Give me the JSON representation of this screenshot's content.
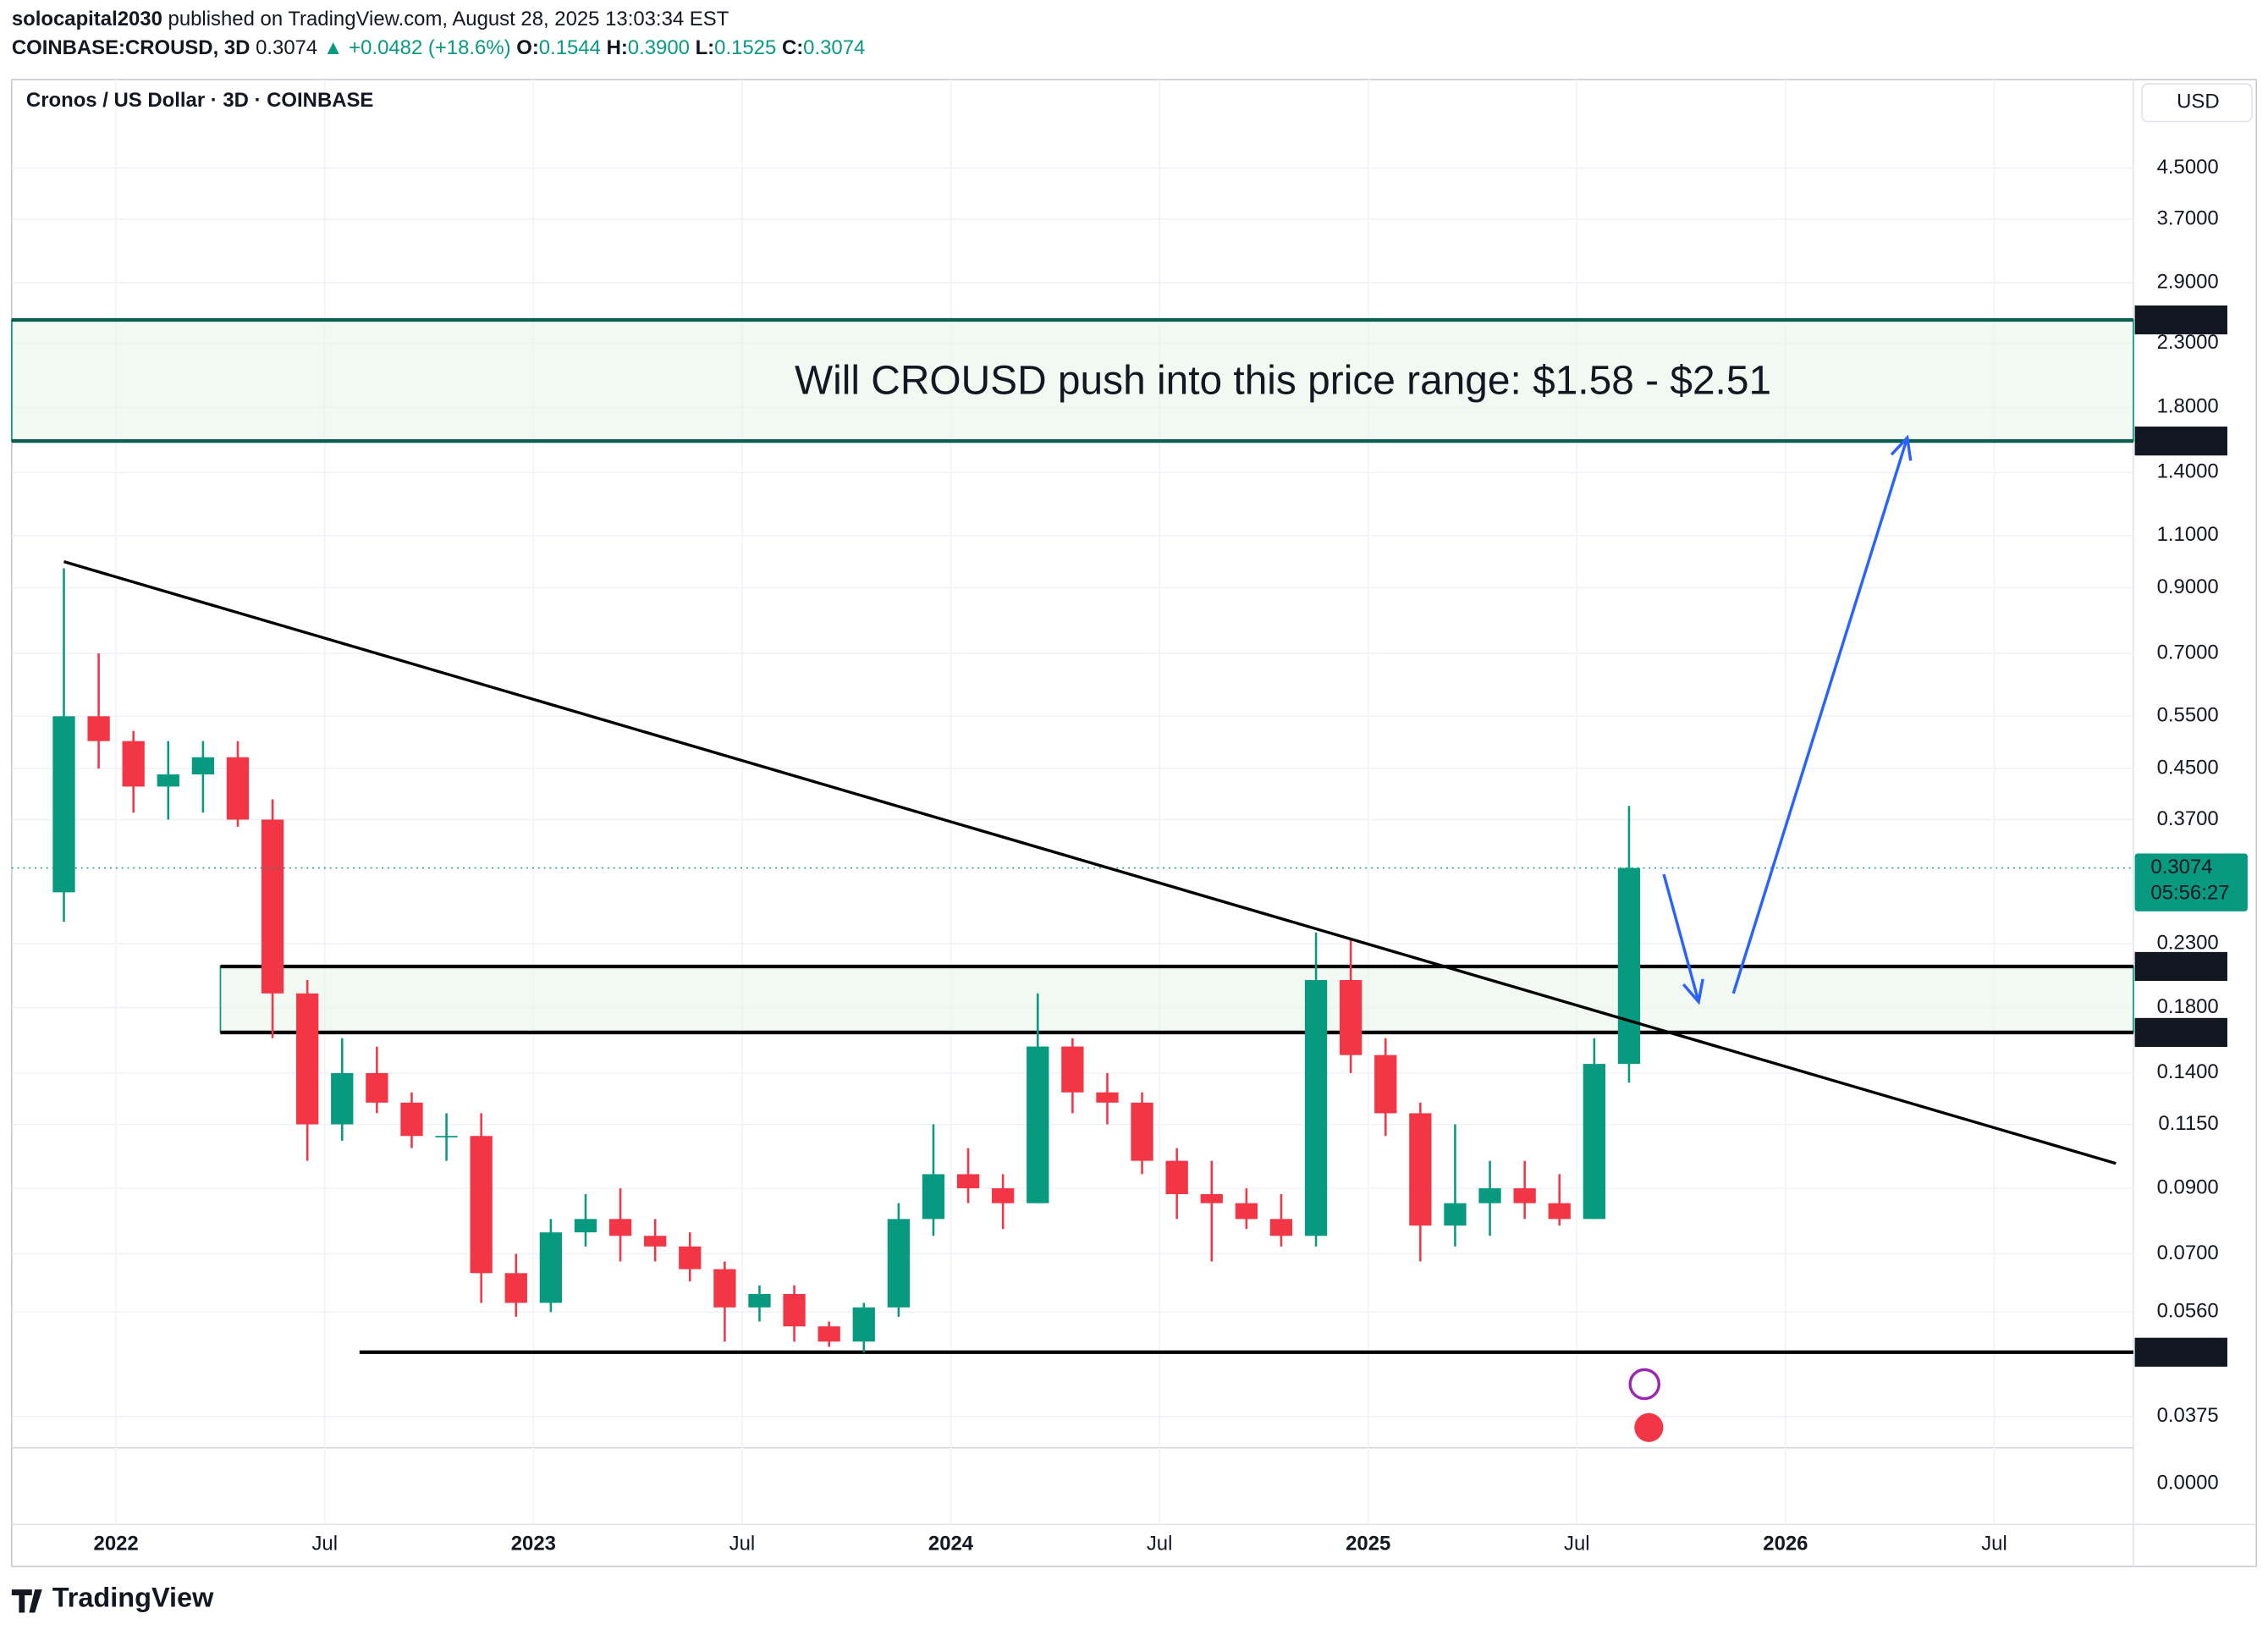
{
  "header": {
    "author": "solocapital2030",
    "published": "published on TradingView.com, August 28, 2025 13:03:34 EST",
    "symbol": "COINBASE:CROUSD, 3D",
    "last": "0.3074",
    "change": "▲ +0.0482 (+18.6%)",
    "ohlc": [
      {
        "label": "O:",
        "value": "0.1544"
      },
      {
        "label": "H:",
        "value": "0.3900"
      },
      {
        "label": "L:",
        "value": "0.1525"
      },
      {
        "label": "C:",
        "value": "0.3074"
      }
    ]
  },
  "footer": {
    "brand": "TradingView"
  },
  "chart_data": {
    "type": "candlestick",
    "title": "Cronos / US Dollar · 3D · COINBASE",
    "currency": "USD",
    "up_color": "#089981",
    "down_color": "#f23645",
    "log_scale": true,
    "grid": true,
    "x": [
      "2021-11",
      "2021-12",
      "2022-01",
      "2022-02",
      "2022-03",
      "2022-04",
      "2022-05",
      "2022-06",
      "2022-07",
      "2022-08",
      "2022-09",
      "2022-10",
      "2022-11",
      "2022-12",
      "2023-01",
      "2023-02",
      "2023-03",
      "2023-04",
      "2023-05",
      "2023-06",
      "2023-07",
      "2023-08",
      "2023-09",
      "2023-10",
      "2023-11",
      "2023-12",
      "2024-01",
      "2024-02",
      "2024-03",
      "2024-04",
      "2024-05",
      "2024-06",
      "2024-07",
      "2024-08",
      "2024-09",
      "2024-10",
      "2024-11",
      "2024-12",
      "2025-01",
      "2025-02",
      "2025-03",
      "2025-04",
      "2025-05",
      "2025-06",
      "2025-07",
      "2025-08"
    ],
    "open": [
      0.28,
      0.55,
      0.5,
      0.42,
      0.44,
      0.47,
      0.37,
      0.19,
      0.115,
      0.14,
      0.125,
      0.11,
      0.11,
      0.065,
      0.058,
      0.076,
      0.08,
      0.075,
      0.072,
      0.066,
      0.057,
      0.06,
      0.053,
      0.05,
      0.057,
      0.08,
      0.095,
      0.09,
      0.085,
      0.155,
      0.13,
      0.125,
      0.1,
      0.088,
      0.085,
      0.08,
      0.075,
      0.2,
      0.15,
      0.12,
      0.078,
      0.085,
      0.09,
      0.085,
      0.08,
      0.145
    ],
    "high": [
      0.97,
      0.7,
      0.52,
      0.5,
      0.5,
      0.5,
      0.4,
      0.2,
      0.16,
      0.155,
      0.13,
      0.12,
      0.12,
      0.07,
      0.08,
      0.088,
      0.09,
      0.08,
      0.076,
      0.068,
      0.062,
      0.062,
      0.054,
      0.058,
      0.085,
      0.115,
      0.105,
      0.095,
      0.19,
      0.16,
      0.14,
      0.13,
      0.105,
      0.1,
      0.09,
      0.088,
      0.24,
      0.235,
      0.16,
      0.125,
      0.115,
      0.1,
      0.1,
      0.095,
      0.16,
      0.39
    ],
    "low": [
      0.25,
      0.45,
      0.38,
      0.37,
      0.38,
      0.36,
      0.16,
      0.1,
      0.108,
      0.12,
      0.105,
      0.1,
      0.058,
      0.055,
      0.056,
      0.072,
      0.068,
      0.068,
      0.063,
      0.05,
      0.054,
      0.05,
      0.049,
      0.048,
      0.055,
      0.075,
      0.085,
      0.077,
      0.085,
      0.12,
      0.115,
      0.095,
      0.08,
      0.068,
      0.077,
      0.072,
      0.072,
      0.14,
      0.11,
      0.068,
      0.072,
      0.075,
      0.08,
      0.078,
      0.08,
      0.135
    ],
    "close": [
      0.55,
      0.5,
      0.42,
      0.44,
      0.47,
      0.37,
      0.19,
      0.115,
      0.14,
      0.125,
      0.11,
      0.11,
      0.065,
      0.058,
      0.076,
      0.08,
      0.075,
      0.072,
      0.066,
      0.057,
      0.06,
      0.053,
      0.05,
      0.057,
      0.08,
      0.095,
      0.09,
      0.085,
      0.155,
      0.13,
      0.125,
      0.1,
      0.088,
      0.085,
      0.08,
      0.075,
      0.2,
      0.15,
      0.12,
      0.078,
      0.085,
      0.09,
      0.085,
      0.08,
      0.145,
      0.3074
    ],
    "xlim": [
      "2021-10",
      "2026-11"
    ],
    "xticks": [
      {
        "value": "2022-01",
        "label": "2022"
      },
      {
        "value": "2022-07",
        "label": "Jul"
      },
      {
        "value": "2023-01",
        "label": "2023"
      },
      {
        "value": "2023-07",
        "label": "Jul"
      },
      {
        "value": "2024-01",
        "label": "2024"
      },
      {
        "value": "2024-07",
        "label": "Jul"
      },
      {
        "value": "2025-01",
        "label": "2025"
      },
      {
        "value": "2025-07",
        "label": "Jul"
      },
      {
        "value": "2026-01",
        "label": "2026"
      },
      {
        "value": "2026-07",
        "label": "Jul"
      }
    ],
    "ylim": [
      0.0248,
      6.32
    ],
    "yticks": [
      {
        "value": 4.5,
        "label": "4.5000"
      },
      {
        "value": 3.7,
        "label": "3.7000"
      },
      {
        "value": 2.9,
        "label": "2.9000"
      },
      {
        "value": 2.3,
        "label": "2.3000"
      },
      {
        "value": 1.8,
        "label": "1.8000"
      },
      {
        "value": 1.4,
        "label": "1.4000"
      },
      {
        "value": 1.1,
        "label": "1.1000"
      },
      {
        "value": 0.9,
        "label": "0.9000"
      },
      {
        "value": 0.7,
        "label": "0.7000"
      },
      {
        "value": 0.55,
        "label": "0.5500"
      },
      {
        "value": 0.45,
        "label": "0.4500"
      },
      {
        "value": 0.37,
        "label": "0.3700"
      },
      {
        "value": 0.23,
        "label": "0.2300"
      },
      {
        "value": 0.18,
        "label": "0.1800"
      },
      {
        "value": 0.14,
        "label": "0.1400"
      },
      {
        "value": 0.115,
        "label": "0.1150"
      },
      {
        "value": 0.09,
        "label": "0.0900"
      },
      {
        "value": 0.07,
        "label": "0.0700"
      },
      {
        "value": 0.056,
        "label": "0.0560"
      },
      {
        "value": 0.0375,
        "label": "0.0375"
      },
      {
        "value": 0,
        "label": "0.0000"
      }
    ],
    "last_price": 0.3074,
    "countdown": "05:56:27",
    "zones": [
      {
        "x_start": "2021-10",
        "low": 1.5802,
        "high": 2.5143,
        "color": "#0b5d4f"
      },
      {
        "x_start": "2022-04",
        "low": 0.1636,
        "high": 0.2107,
        "color": "#000000"
      }
    ],
    "levels": [
      {
        "x_start": "2022-08",
        "value": {
          "value": 0.048,
          "label": "0.0480"
        }
      }
    ],
    "trendline": {
      "x": [
        "2021-11",
        "2026-10"
      ],
      "values": [
        0.995,
        0.099
      ]
    },
    "projection": {
      "x": [
        "2025-09",
        "2025-10",
        "2025-11",
        "2026-04"
      ],
      "values": [
        0.3,
        0.184,
        0.19,
        1.6
      ],
      "color": "#2962ff"
    },
    "annotation": "Will CROUSD push into this price range: $1.58 - $2.51"
  }
}
